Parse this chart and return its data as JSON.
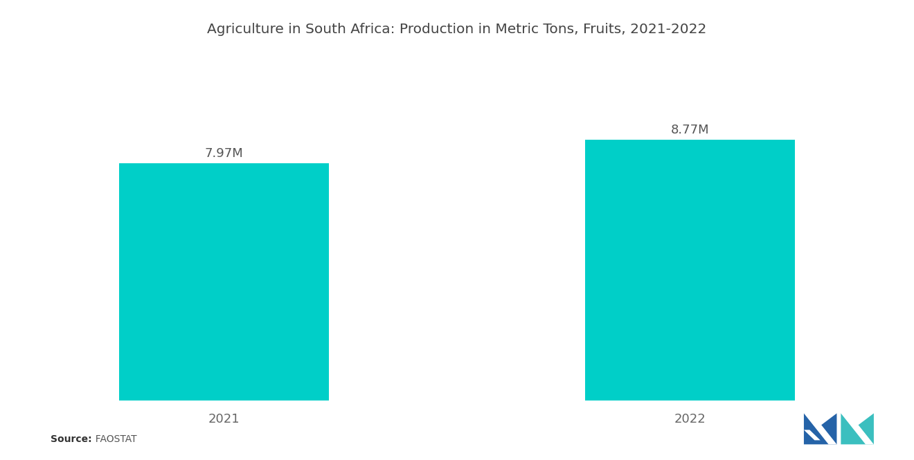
{
  "title": "Agriculture in South Africa: Production in Metric Tons, Fruits, 2021-2022",
  "categories": [
    "2021",
    "2022"
  ],
  "values": [
    7.97,
    8.77
  ],
  "labels": [
    "7.97M",
    "8.77M"
  ],
  "bar_color": "#00CFC8",
  "background_color": "#ffffff",
  "title_fontsize": 14.5,
  "label_fontsize": 13,
  "tick_fontsize": 13,
  "source_bold": "Source:",
  "source_normal": "  FAOSTAT",
  "ylim": [
    0,
    11.0
  ],
  "bar_width": 0.72,
  "bar_positions": [
    0.0,
    1.6
  ],
  "xlim": [
    -0.55,
    2.15
  ]
}
